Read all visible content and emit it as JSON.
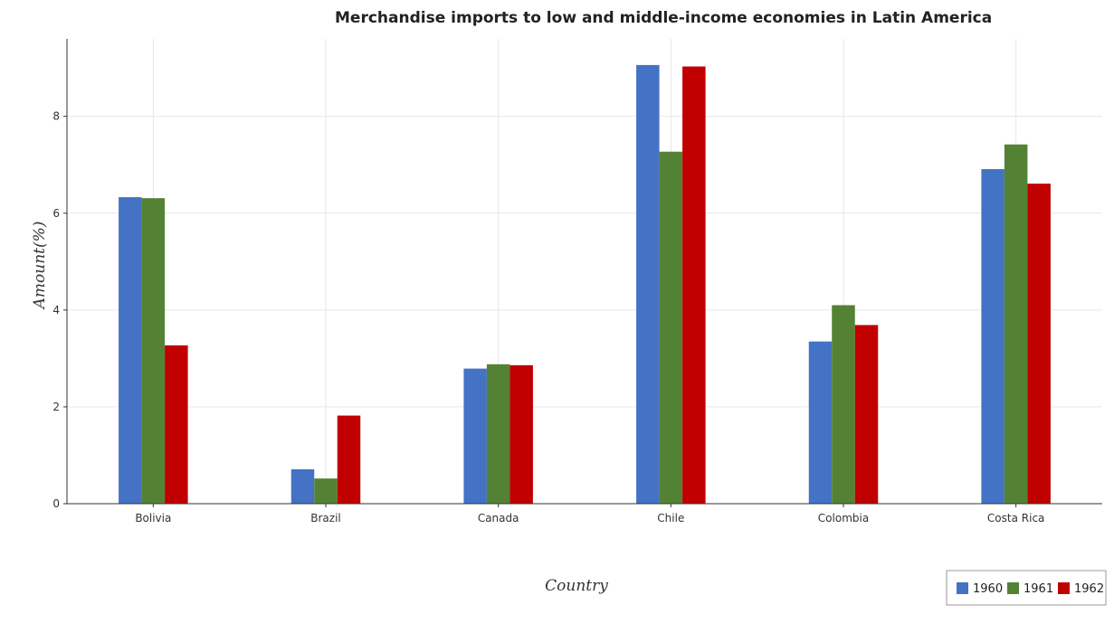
{
  "colors": {
    "1960": "#4472c4",
    "1961": "#548235",
    "1962": "#c00000"
  },
  "chart_data": {
    "type": "bar",
    "title": "Merchandise imports to low and middle-income economies in Latin America",
    "xlabel": "Country",
    "ylabel": "Amount(%)",
    "categories": [
      "Bolivia",
      "Brazil",
      "Canada",
      "Chile",
      "Colombia",
      "Costa Rica"
    ],
    "ylim": [
      0,
      9.6
    ],
    "yticks": [
      0,
      2,
      4,
      6,
      8
    ],
    "ytick_labels": [
      "0",
      "2",
      "4",
      "6",
      "8"
    ],
    "grid": true,
    "legend_position": "bottom-right",
    "series": [
      {
        "name": "1960",
        "values": [
          6.33,
          0.71,
          2.79,
          9.06,
          3.35,
          6.91
        ]
      },
      {
        "name": "1961",
        "values": [
          6.31,
          0.52,
          2.88,
          7.27,
          4.1,
          7.42
        ]
      },
      {
        "name": "1962",
        "values": [
          3.27,
          1.82,
          2.86,
          9.03,
          3.69,
          6.61
        ]
      }
    ]
  }
}
